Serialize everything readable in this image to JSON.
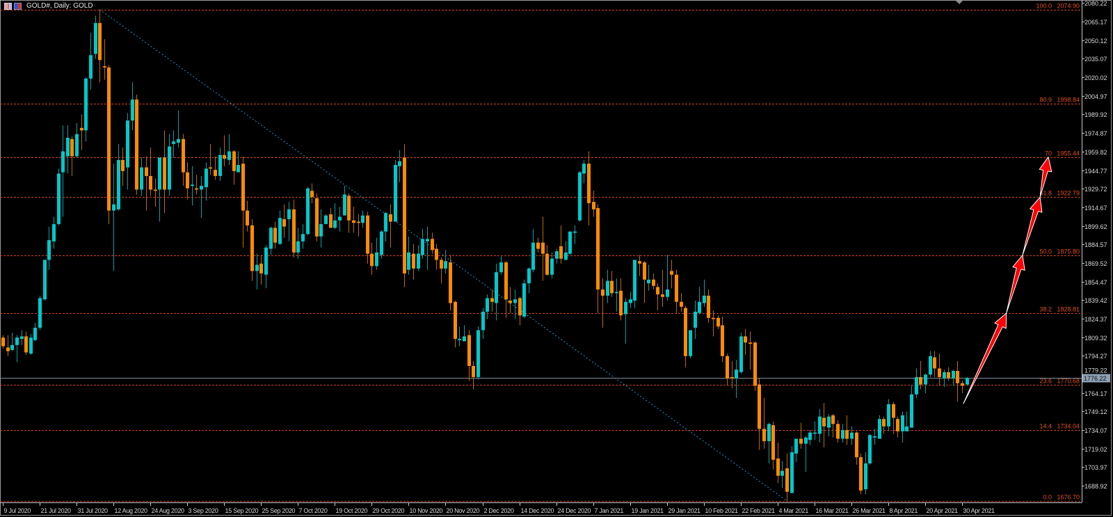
{
  "window": {
    "title": "GOLD#, Daily: GOLD",
    "icons": [
      "chart-window-icon",
      "symbol-flag-icon"
    ]
  },
  "colors": {
    "background": "#000000",
    "bull": "#00c8cc",
    "bull_wick": "#08a0a4",
    "bear": "#ff8c00",
    "bear_wick": "#c06a00",
    "fib_line": "#d4441a",
    "fib_text": "#e2501e",
    "trend_line": "#1a9ad0",
    "price_line": "#7f8fa0",
    "price_box": "#8ea0b4",
    "arrow_fill": "#ff0000",
    "arrow_outline": "#ffffff",
    "axis_text": "#d8d8d8"
  },
  "chart_data": {
    "type": "candlestick",
    "symbol": "GOLD#",
    "timeframe": "Daily",
    "ylim": [
      1675.4,
      2082.7
    ],
    "grid": false,
    "last_price": "1776.22",
    "ohlc": [
      [
        1809,
        1811,
        1800,
        1802
      ],
      [
        1801,
        1811,
        1794,
        1798
      ],
      [
        1799,
        1813,
        1798,
        1803
      ],
      [
        1803,
        1811,
        1789,
        1809
      ],
      [
        1808,
        1815,
        1803,
        1810
      ],
      [
        1810,
        1814,
        1795,
        1797
      ],
      [
        1796,
        1812,
        1795,
        1809
      ],
      [
        1807,
        1821,
        1806,
        1817
      ],
      [
        1817,
        1843,
        1815,
        1841
      ],
      [
        1840,
        1872,
        1839,
        1872
      ],
      [
        1872,
        1899,
        1864,
        1888
      ],
      [
        1887,
        1907,
        1881,
        1901
      ],
      [
        1901,
        1946,
        1900,
        1942
      ],
      [
        1943,
        1981,
        1907,
        1960
      ],
      [
        1956,
        1981,
        1942,
        1971
      ],
      [
        1970,
        1972,
        1940,
        1956
      ],
      [
        1956,
        1983,
        1955,
        1974
      ],
      [
        1979,
        1990,
        1961,
        1977
      ],
      [
        1977,
        2020,
        1968,
        2019
      ],
      [
        2019,
        2056,
        2010,
        2038
      ],
      [
        2039,
        2070,
        2035,
        2064
      ],
      [
        2064,
        2074.9,
        2016,
        2034
      ],
      [
        2029,
        2051,
        2018,
        2028
      ],
      [
        2028,
        2030,
        1901,
        1912
      ],
      [
        1912,
        1950,
        1863,
        1917
      ],
      [
        1913,
        1966,
        1912,
        1953
      ],
      [
        1953,
        1963,
        1932,
        1944
      ],
      [
        1947,
        1991,
        1929,
        1985
      ],
      [
        1985,
        2016,
        1977,
        2002
      ],
      [
        2002,
        2006,
        1925,
        1929
      ],
      [
        1929,
        1955,
        1924,
        1947
      ],
      [
        1947,
        1956,
        1912,
        1940
      ],
      [
        1940,
        1963,
        1924,
        1929
      ],
      [
        1929,
        1938,
        1915,
        1928
      ],
      [
        1929,
        1955,
        1903,
        1955
      ],
      [
        1955,
        1977,
        1910,
        1929
      ],
      [
        1929,
        1974,
        1924,
        1964
      ],
      [
        1966,
        1977,
        1955,
        1968
      ],
      [
        1967,
        1993,
        1963,
        1970
      ],
      [
        1970,
        1974,
        1932,
        1943
      ],
      [
        1943,
        1951,
        1921,
        1930
      ],
      [
        1932,
        1948,
        1916,
        1933
      ],
      [
        1930,
        1941,
        1925,
        1929
      ],
      [
        1929,
        1940,
        1906,
        1932
      ],
      [
        1931,
        1951,
        1920,
        1946
      ],
      [
        1947,
        1966,
        1941,
        1946
      ],
      [
        1945,
        1956,
        1937,
        1940
      ],
      [
        1940,
        1963,
        1936,
        1957
      ],
      [
        1957,
        1973,
        1948,
        1954
      ],
      [
        1953,
        1974,
        1949,
        1960
      ],
      [
        1960,
        1961,
        1933,
        1944
      ],
      [
        1943,
        1960,
        1943,
        1949
      ],
      [
        1950,
        1956,
        1882,
        1912
      ],
      [
        1912,
        1920,
        1895,
        1900
      ],
      [
        1900,
        1905,
        1855,
        1863
      ],
      [
        1863,
        1877,
        1848,
        1868
      ],
      [
        1869,
        1876,
        1852,
        1861
      ],
      [
        1860,
        1884,
        1849,
        1882
      ],
      [
        1881,
        1899,
        1876,
        1898
      ],
      [
        1898,
        1903,
        1881,
        1886
      ],
      [
        1885,
        1912,
        1884,
        1906
      ],
      [
        1905,
        1917,
        1890,
        1899
      ],
      [
        1905,
        1919,
        1887,
        1913
      ],
      [
        1913,
        1921,
        1874,
        1878
      ],
      [
        1878,
        1898,
        1873,
        1887
      ],
      [
        1887,
        1901,
        1881,
        1893
      ],
      [
        1893,
        1931,
        1892,
        1930
      ],
      [
        1928,
        1934,
        1918,
        1923
      ],
      [
        1922,
        1926,
        1887,
        1891
      ],
      [
        1891,
        1913,
        1882,
        1901
      ],
      [
        1901,
        1909,
        1901,
        1908
      ],
      [
        1909,
        1914,
        1898,
        1898
      ],
      [
        1898,
        1918,
        1897,
        1904
      ],
      [
        1904,
        1915,
        1895,
        1907
      ],
      [
        1908,
        1932,
        1908,
        1925
      ],
      [
        1924,
        1926,
        1894,
        1904
      ],
      [
        1904,
        1915,
        1894,
        1902
      ],
      [
        1903,
        1909,
        1891,
        1902
      ],
      [
        1902,
        1912,
        1898,
        1908
      ],
      [
        1908,
        1911,
        1869,
        1877
      ],
      [
        1877,
        1886,
        1860,
        1867
      ],
      [
        1867,
        1890,
        1864,
        1878
      ],
      [
        1876,
        1896,
        1873,
        1895
      ],
      [
        1895,
        1911,
        1887,
        1910
      ],
      [
        1909,
        1917,
        1882,
        1903
      ],
      [
        1903,
        1953,
        1903,
        1949
      ],
      [
        1948,
        1961,
        1935,
        1952
      ],
      [
        1955,
        1966,
        1850,
        1861
      ],
      [
        1864,
        1891,
        1860,
        1878
      ],
      [
        1877,
        1885,
        1856,
        1865
      ],
      [
        1865,
        1884,
        1863,
        1877
      ],
      [
        1876,
        1897,
        1873,
        1889
      ],
      [
        1887,
        1899,
        1864,
        1889
      ],
      [
        1889,
        1894,
        1877,
        1880
      ],
      [
        1881,
        1885,
        1864,
        1872
      ],
      [
        1872,
        1874,
        1853,
        1865
      ],
      [
        1865,
        1880,
        1861,
        1871
      ],
      [
        1870,
        1876,
        1831,
        1837
      ],
      [
        1838,
        1839,
        1801,
        1808
      ],
      [
        1807,
        1818,
        1802,
        1808
      ],
      [
        1806,
        1819,
        1806,
        1810
      ],
      [
        1811,
        1815,
        1774,
        1786
      ],
      [
        1786,
        1790,
        1767,
        1777
      ],
      [
        1777,
        1818,
        1775,
        1815
      ],
      [
        1815,
        1833,
        1808,
        1830
      ],
      [
        1830,
        1844,
        1824,
        1841
      ],
      [
        1841,
        1848,
        1830,
        1838
      ],
      [
        1837,
        1869,
        1823,
        1862
      ],
      [
        1862,
        1875,
        1860,
        1870
      ],
      [
        1870,
        1871,
        1825,
        1840
      ],
      [
        1839,
        1850,
        1829,
        1837
      ],
      [
        1837,
        1848,
        1824,
        1840
      ],
      [
        1841,
        1842,
        1819,
        1827
      ],
      [
        1826,
        1856,
        1825,
        1853
      ],
      [
        1853,
        1866,
        1845,
        1865
      ],
      [
        1864,
        1897,
        1862,
        1886
      ],
      [
        1886,
        1890,
        1878,
        1881
      ],
      [
        1886,
        1907,
        1855,
        1877
      ],
      [
        1877,
        1884,
        1859,
        1860
      ],
      [
        1860,
        1878,
        1857,
        1873
      ],
      [
        1873,
        1881,
        1869,
        1879
      ],
      [
        1883,
        1900,
        1869,
        1873
      ],
      [
        1872,
        1887,
        1872,
        1878
      ],
      [
        1877,
        1895,
        1876,
        1895
      ],
      [
        1894,
        1900,
        1885,
        1895
      ],
      [
        1904,
        1944,
        1903,
        1943
      ],
      [
        1942,
        1953,
        1934,
        1950
      ],
      [
        1950,
        1960,
        1900,
        1918
      ],
      [
        1919,
        1928,
        1907,
        1913
      ],
      [
        1914,
        1917,
        1829,
        1848
      ],
      [
        1848,
        1857,
        1817,
        1843
      ],
      [
        1843,
        1864,
        1837,
        1855
      ],
      [
        1855,
        1863,
        1842,
        1845
      ],
      [
        1845,
        1857,
        1830,
        1846
      ],
      [
        1847,
        1857,
        1823,
        1827
      ],
      [
        1828,
        1841,
        1804,
        1838
      ],
      [
        1837,
        1846,
        1833,
        1840
      ],
      [
        1839,
        1872,
        1833,
        1872
      ],
      [
        1871,
        1876,
        1859,
        1869
      ],
      [
        1870,
        1871,
        1837,
        1856
      ],
      [
        1853,
        1868,
        1847,
        1856
      ],
      [
        1856,
        1861,
        1848,
        1851
      ],
      [
        1850,
        1853,
        1831,
        1844
      ],
      [
        1844,
        1864,
        1834,
        1842
      ],
      [
        1842,
        1876,
        1839,
        1848
      ],
      [
        1863,
        1872,
        1849,
        1860
      ],
      [
        1860,
        1864,
        1829,
        1838
      ],
      [
        1838,
        1845,
        1830,
        1834
      ],
      [
        1833,
        1835,
        1785,
        1794
      ],
      [
        1794,
        1815,
        1792,
        1815
      ],
      [
        1817,
        1839,
        1808,
        1830
      ],
      [
        1829,
        1850,
        1828,
        1838
      ],
      [
        1837,
        1856,
        1834,
        1843
      ],
      [
        1843,
        1848,
        1821,
        1825
      ],
      [
        1825,
        1831,
        1810,
        1824
      ],
      [
        1825,
        1827,
        1816,
        1818
      ],
      [
        1819,
        1826,
        1789,
        1794
      ],
      [
        1794,
        1796,
        1770,
        1776
      ],
      [
        1777,
        1790,
        1768,
        1776
      ],
      [
        1776,
        1791,
        1760,
        1783
      ],
      [
        1781,
        1813,
        1780,
        1810
      ],
      [
        1810,
        1816,
        1795,
        1805
      ],
      [
        1805,
        1814,
        1783,
        1804
      ],
      [
        1805,
        1806,
        1766,
        1770
      ],
      [
        1771,
        1776,
        1718,
        1735
      ],
      [
        1735,
        1760,
        1719,
        1725
      ],
      [
        1725,
        1740,
        1707,
        1739
      ],
      [
        1738,
        1741,
        1702,
        1710
      ],
      [
        1711,
        1724,
        1691,
        1697
      ],
      [
        1697,
        1709,
        1687,
        1701
      ],
      [
        1703,
        1715,
        1676.7,
        1684
      ],
      [
        1683,
        1721,
        1683,
        1716
      ],
      [
        1715,
        1727,
        1708,
        1727
      ],
      [
        1727,
        1740,
        1719,
        1723
      ],
      [
        1723,
        1729,
        1700,
        1728
      ],
      [
        1726,
        1734,
        1722,
        1732
      ],
      [
        1731,
        1741,
        1726,
        1732
      ],
      [
        1731,
        1751,
        1724,
        1745
      ],
      [
        1744,
        1756,
        1720,
        1737
      ],
      [
        1736,
        1747,
        1729,
        1745
      ],
      [
        1746,
        1747,
        1728,
        1739
      ],
      [
        1739,
        1742,
        1724,
        1727
      ],
      [
        1727,
        1739,
        1724,
        1734
      ],
      [
        1734,
        1746,
        1722,
        1727
      ],
      [
        1727,
        1737,
        1722,
        1732
      ],
      [
        1732,
        1733,
        1706,
        1712
      ],
      [
        1712,
        1715,
        1682,
        1685
      ],
      [
        1686,
        1716,
        1682,
        1707
      ],
      [
        1707,
        1731,
        1706,
        1730
      ],
      [
        1728,
        1735,
        1722,
        1729
      ],
      [
        1727,
        1746,
        1727,
        1743
      ],
      [
        1743,
        1745,
        1731,
        1737
      ],
      [
        1737,
        1759,
        1733,
        1755
      ],
      [
        1755,
        1757,
        1731,
        1744
      ],
      [
        1743,
        1745,
        1728,
        1733
      ],
      [
        1733,
        1749,
        1724,
        1746
      ],
      [
        1733,
        1749,
        1733,
        1737
      ],
      [
        1736,
        1770,
        1736,
        1763
      ],
      [
        1763,
        1784,
        1760,
        1777
      ],
      [
        1777,
        1790,
        1767,
        1771
      ],
      [
        1771,
        1780,
        1764,
        1779
      ],
      [
        1779,
        1798,
        1777,
        1794
      ],
      [
        1793,
        1798,
        1777,
        1784
      ],
      [
        1784,
        1796,
        1770,
        1777
      ],
      [
        1776,
        1783,
        1769,
        1781
      ],
      [
        1781,
        1785,
        1774,
        1776
      ],
      [
        1776,
        1783,
        1770,
        1782
      ],
      [
        1782,
        1790,
        1757,
        1772
      ],
      [
        1772,
        1774,
        1764,
        1770
      ],
      [
        1771,
        1777,
        1770,
        1776.22
      ]
    ],
    "x_tick_labels": [
      {
        "index": 0,
        "label": "9 Jul 2020"
      },
      {
        "index": 8,
        "label": "21 Jul 2020"
      },
      {
        "index": 16,
        "label": "31 Jul 2020"
      },
      {
        "index": 24,
        "label": "12 Aug 2020"
      },
      {
        "index": 32,
        "label": "24 Aug 2020"
      },
      {
        "index": 40,
        "label": "3 Sep 2020"
      },
      {
        "index": 48,
        "label": "15 Sep 2020"
      },
      {
        "index": 56,
        "label": "25 Sep 2020"
      },
      {
        "index": 64,
        "label": "7 Oct 2020"
      },
      {
        "index": 72,
        "label": "19 Oct 2020"
      },
      {
        "index": 80,
        "label": "29 Oct 2020"
      },
      {
        "index": 88,
        "label": "10 Nov 2020"
      },
      {
        "index": 96,
        "label": "20 Nov 2020"
      },
      {
        "index": 104,
        "label": "2 Dec 2020"
      },
      {
        "index": 112,
        "label": "14 Dec 2020"
      },
      {
        "index": 120,
        "label": "24 Dec 2020"
      },
      {
        "index": 128,
        "label": "7 Jan 2021"
      },
      {
        "index": 136,
        "label": "19 Jan 2021"
      },
      {
        "index": 144,
        "label": "29 Jan 2021"
      },
      {
        "index": 152,
        "label": "10 Feb 2021"
      },
      {
        "index": 160,
        "label": "22 Feb 2021"
      },
      {
        "index": 168,
        "label": "4 Mar 2021"
      },
      {
        "index": 176,
        "label": "16 Mar 2021"
      },
      {
        "index": 184,
        "label": "26 Mar 2021"
      },
      {
        "index": 192,
        "label": "8 Apr 2021"
      },
      {
        "index": 200,
        "label": "20 Apr 2021"
      },
      {
        "index": 208,
        "label": "30 Apr 2021"
      }
    ],
    "y_tick_labels": [
      "2080.22",
      "2065.17",
      "2050.12",
      "2035.07",
      "2020.02",
      "2004.97",
      "1989.92",
      "1974.87",
      "1959.82",
      "1944.77",
      "1929.72",
      "1914.67",
      "1899.62",
      "1884.57",
      "1869.52",
      "1854.47",
      "1839.42",
      "1824.37",
      "1809.32",
      "1794.27",
      "1779.22",
      "1764.17",
      "1749.12",
      "1734.07",
      "1719.02",
      "1703.97",
      "1688.92"
    ],
    "fibonacci": {
      "anchor_high": 2074.9,
      "anchor_low": 1676.7,
      "levels": [
        {
          "level": "100.0",
          "price": "2074.90"
        },
        {
          "level": "80.9",
          "price": "1998.84"
        },
        {
          "level": "70",
          "price": "1955.44"
        },
        {
          "level": "61.8",
          "price": "1922.79"
        },
        {
          "level": "50.0",
          "price": "1875.80"
        },
        {
          "level": "38.2",
          "price": "1828.81"
        },
        {
          "level": "23.6",
          "price": "1770.68"
        },
        {
          "level": "14.4",
          "price": "1734.04"
        },
        {
          "level": "0.0",
          "price": "1676.70"
        }
      ]
    },
    "projection_arrow_targets": [
      "38.2",
      "50.0",
      "61.8",
      "70"
    ]
  }
}
